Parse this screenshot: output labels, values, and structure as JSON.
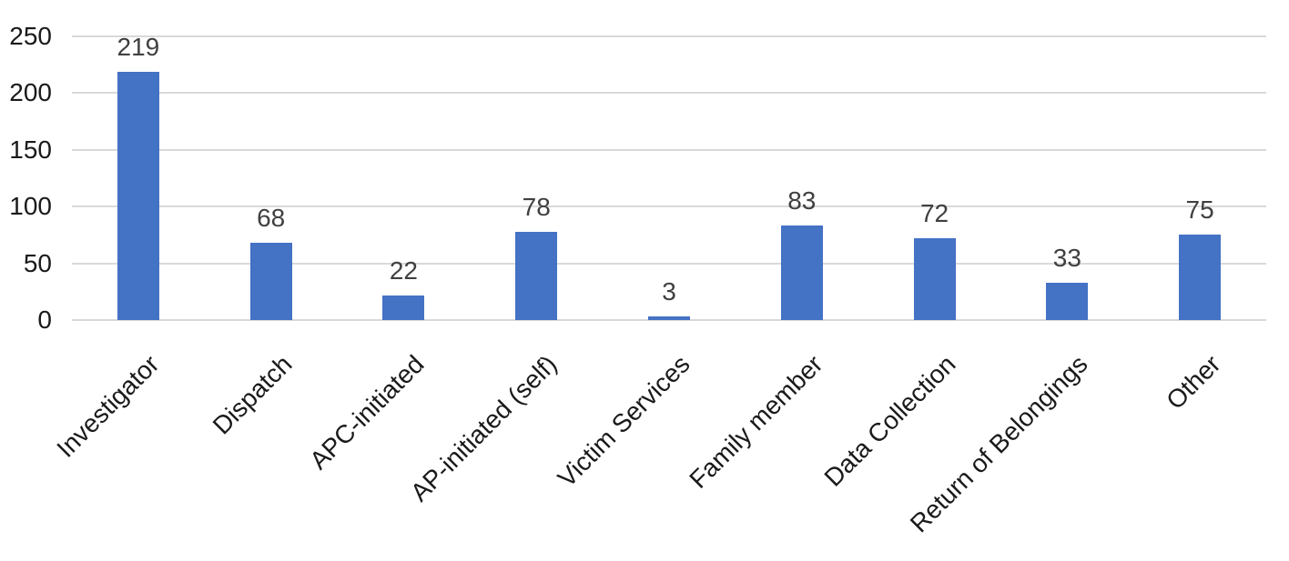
{
  "chart_data": {
    "type": "bar",
    "categories": [
      "Investigator",
      "Dispatch",
      "APC-initiated",
      "AP-initiated (self)",
      "Victim Services",
      "Family member",
      "Data Collection",
      "Return of Belongings",
      "Other"
    ],
    "values": [
      219,
      68,
      22,
      78,
      3,
      83,
      72,
      33,
      75
    ],
    "data_labels": [
      "219",
      "68",
      "22",
      "78",
      "3",
      "83",
      "72",
      "33",
      "75"
    ],
    "ytick_labels": [
      "0",
      "50",
      "100",
      "150",
      "200",
      "250"
    ],
    "yticks": [
      0,
      50,
      100,
      150,
      200,
      250
    ],
    "ylim": [
      0,
      250
    ],
    "title": "",
    "xlabel": "",
    "ylabel": "",
    "grid": true,
    "legend_position": "none",
    "colors": {
      "bar": "#4472C4",
      "data_label": "#404040",
      "axis_text": "#1a1a1a",
      "gridline": "#D9D9D9",
      "background": "#FFFFFF"
    }
  }
}
